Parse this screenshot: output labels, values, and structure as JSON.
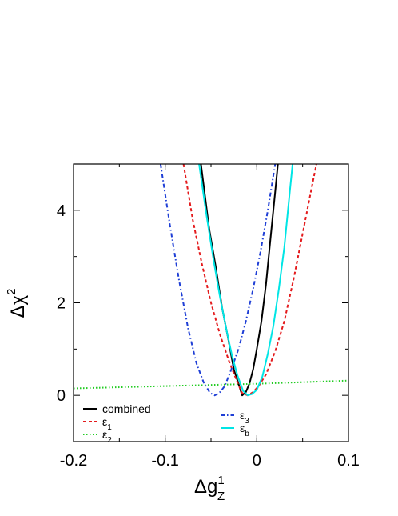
{
  "chart_data": {
    "type": "line",
    "xlabel": "Δg",
    "xlabel_sup": "1",
    "xlabel_sub": "Z",
    "ylabel": "Δχ",
    "ylabel_sup": "2",
    "xlim": [
      -0.2,
      0.1
    ],
    "ylim": [
      -1,
      5
    ],
    "xticks": [
      -0.2,
      -0.1,
      0,
      0.1
    ],
    "xtick_labels": [
      "-0.2",
      "-0.1",
      "0",
      "0.1"
    ],
    "yticks": [
      0,
      2,
      4
    ],
    "ytick_labels": [
      "0",
      "2",
      "4"
    ],
    "grid": false,
    "legend_placement": "bottom",
    "series": [
      {
        "name": "combined",
        "label_main": "combined",
        "label_sub": "",
        "color": "#000000",
        "style": "solid",
        "x": [
          -0.061,
          -0.052,
          -0.045,
          -0.038,
          -0.031,
          -0.025,
          -0.02,
          -0.016,
          -0.012,
          -0.008,
          -0.004,
          0.0,
          0.005,
          0.01,
          0.015,
          0.02,
          0.023
        ],
        "y": [
          5.0,
          3.6,
          2.8,
          1.9,
          1.2,
          0.55,
          0.25,
          0.0,
          0.07,
          0.26,
          0.56,
          1.0,
          1.6,
          2.4,
          3.4,
          4.4,
          5.0
        ]
      },
      {
        "name": "ε1",
        "label_main": "ε",
        "label_sub": "1",
        "color": "#e41a1c",
        "style": "dashed",
        "x": [
          -0.08,
          -0.07,
          -0.06,
          -0.05,
          -0.04,
          -0.03,
          -0.022,
          -0.016,
          -0.01,
          -0.004,
          0.002,
          0.01,
          0.02,
          0.03,
          0.04,
          0.05,
          0.06,
          0.065
        ],
        "y": [
          5.0,
          3.8,
          2.85,
          2.0,
          1.3,
          0.72,
          0.32,
          0.05,
          0.0,
          0.07,
          0.2,
          0.45,
          0.95,
          1.6,
          2.5,
          3.5,
          4.5,
          5.0
        ]
      },
      {
        "name": "ε2",
        "label_main": "ε",
        "label_sub": "2",
        "color": "#22cc22",
        "style": "dotted",
        "x": [
          -0.2,
          -0.1,
          0.0,
          0.1
        ],
        "y": [
          0.15,
          0.2,
          0.25,
          0.32
        ]
      },
      {
        "name": "ε3",
        "label_main": "ε",
        "label_sub": "3",
        "color": "#1f3fd6",
        "style": "dashdot",
        "x": [
          -0.105,
          -0.095,
          -0.085,
          -0.075,
          -0.066,
          -0.058,
          -0.051,
          -0.046,
          -0.041,
          -0.035,
          -0.028,
          -0.02,
          -0.012,
          -0.004,
          0.004,
          0.012,
          0.02
        ],
        "y": [
          5.0,
          3.7,
          2.5,
          1.45,
          0.7,
          0.28,
          0.05,
          0.0,
          0.05,
          0.2,
          0.55,
          1.0,
          1.6,
          2.3,
          3.1,
          4.0,
          5.0
        ]
      },
      {
        "name": "εb",
        "label_main": "ε",
        "label_sub": "b",
        "color": "#00e5e5",
        "style": "solid",
        "x": [
          -0.063,
          -0.055,
          -0.047,
          -0.04,
          -0.033,
          -0.027,
          -0.021,
          -0.015,
          -0.01,
          -0.005,
          0.0,
          0.006,
          0.012,
          0.018,
          0.024,
          0.03,
          0.036,
          0.039
        ],
        "y": [
          5.0,
          3.9,
          2.9,
          2.1,
          1.4,
          0.85,
          0.42,
          0.1,
          0.0,
          0.03,
          0.12,
          0.4,
          0.9,
          1.5,
          2.3,
          3.2,
          4.4,
          5.0
        ]
      }
    ]
  }
}
